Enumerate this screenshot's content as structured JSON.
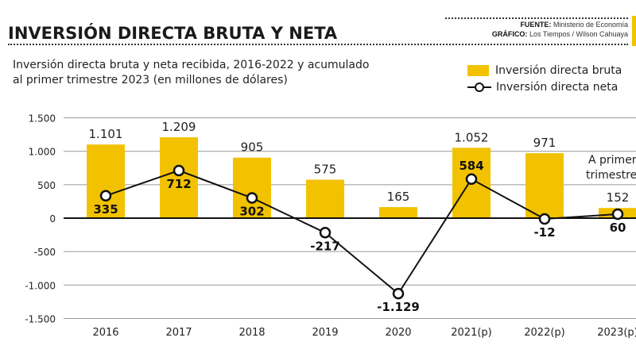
{
  "header": {
    "title": "INVERSIÓN DIRECTA BRUTA Y NETA",
    "source_label": "FUENTE:",
    "source": "Ministerio de Economía",
    "graphic_label": "GRÁFICO:",
    "graphic": "Los Tiempos / Wilson Cahuaya",
    "accent_color": "#f2c200"
  },
  "chart_data": {
    "type": "bar+line",
    "subtitle_line1": "Inversión directa bruta y neta recibida, 2016-2022 y acumulado",
    "subtitle_line2": "al primer trimestre 2023 (en millones de dólares)",
    "categories": [
      "2016",
      "2017",
      "2018",
      "2019",
      "2020",
      "2021(p)",
      "2022(p)",
      "2023(p)"
    ],
    "series": [
      {
        "name": "Inversión directa bruta",
        "type": "bar",
        "color": "#f2c200",
        "values": [
          1101,
          1209,
          905,
          575,
          165,
          1052,
          971,
          152
        ],
        "labels": [
          "1.101",
          "1.209",
          "905",
          "575",
          "165",
          "1.052",
          "971",
          "152"
        ]
      },
      {
        "name": "Inversión directa neta",
        "type": "line",
        "color": "#111111",
        "values": [
          335,
          712,
          302,
          -217,
          -1129,
          584,
          -12,
          60
        ],
        "labels": [
          "335",
          "712",
          "302",
          "-217",
          "-1.129",
          "584",
          "-12",
          "60"
        ]
      }
    ],
    "yticks": [
      1500,
      1000,
      500,
      0,
      -500,
      -1000,
      -1500
    ],
    "ytick_labels": [
      "1.500",
      "1.000",
      "500",
      "0",
      "-500",
      "-1.000",
      "-1.500"
    ],
    "ylim": [
      -1500,
      1500
    ],
    "grid": "horizontal",
    "legend": "top-right",
    "annotation_line1": "A primer",
    "annotation_line2": "trimestre"
  }
}
